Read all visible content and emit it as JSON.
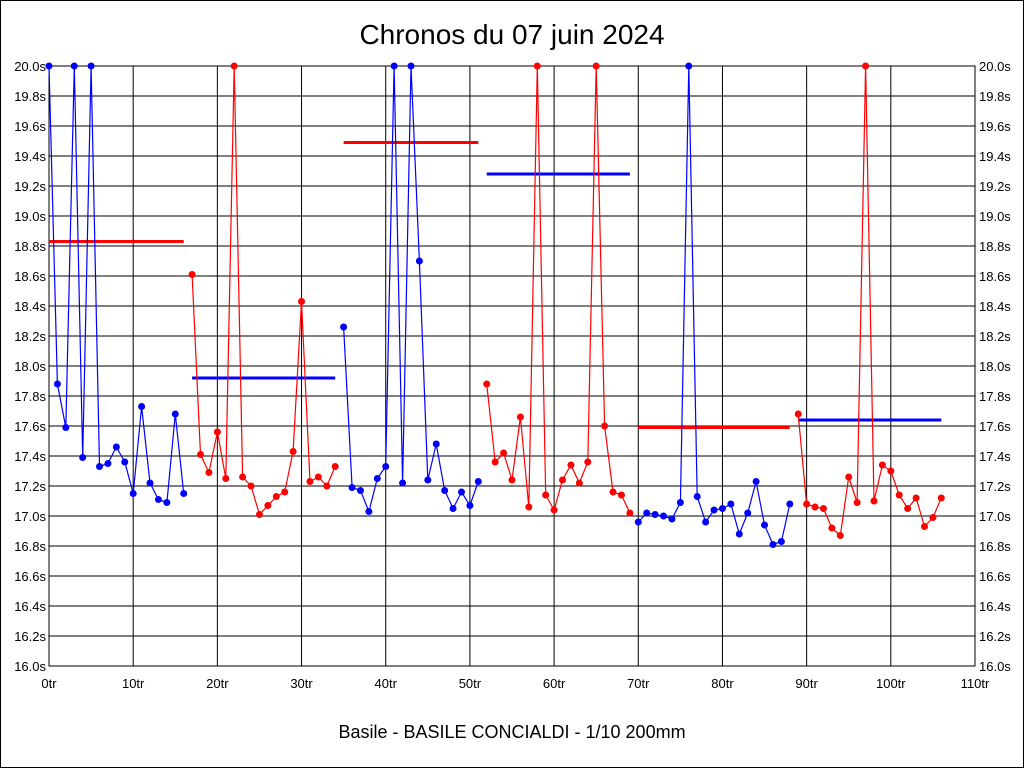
{
  "chart_data": {
    "type": "line",
    "title": "Chronos du 07 juin 2024",
    "xlabel": "Basile - BASILE CONCIALDI - 1/10 200mm",
    "ylabel": "",
    "xlim": [
      0,
      110
    ],
    "ylim": [
      16.0,
      20.0
    ],
    "x_ticks": [
      0,
      10,
      20,
      30,
      40,
      50,
      60,
      70,
      80,
      90,
      100,
      110
    ],
    "x_tick_suffix": "tr",
    "y_ticks": [
      16.0,
      16.2,
      16.4,
      16.6,
      16.8,
      17.0,
      17.2,
      17.4,
      17.6,
      17.8,
      18.0,
      18.2,
      18.4,
      18.6,
      18.8,
      19.0,
      19.2,
      19.4,
      19.6,
      19.8,
      20.0
    ],
    "y_tick_suffix": "s",
    "grid": true,
    "series": [
      {
        "name": "segment-1",
        "color": "#0000ff",
        "avg_color": "#ff0000",
        "start": 0,
        "average": 18.83,
        "values": [
          20.0,
          17.88,
          17.59,
          20.0,
          17.39,
          20.0,
          17.33,
          17.35,
          17.46,
          17.36,
          17.15,
          17.73,
          17.22,
          17.11,
          17.09,
          17.68,
          17.15
        ]
      },
      {
        "name": "segment-2",
        "color": "#ff0000",
        "avg_color": "#0000ff",
        "start": 17,
        "average": 17.92,
        "values": [
          18.61,
          17.41,
          17.29,
          17.56,
          17.25,
          20.0,
          17.26,
          17.2,
          17.01,
          17.07,
          17.13,
          17.16,
          17.43,
          18.43,
          17.23,
          17.26,
          17.2,
          17.33
        ]
      },
      {
        "name": "segment-3",
        "color": "#0000ff",
        "avg_color": "#ff0000",
        "start": 35,
        "average": 19.49,
        "values": [
          18.26,
          17.19,
          17.17,
          17.03,
          17.25,
          17.33,
          20.0,
          17.22,
          20.0,
          18.7,
          17.24,
          17.48,
          17.17,
          17.05,
          17.16,
          17.07,
          17.23
        ]
      },
      {
        "name": "segment-4",
        "color": "#ff0000",
        "avg_color": "#0000ff",
        "start": 52,
        "average": 19.28,
        "values": [
          17.88,
          17.36,
          17.42,
          17.24,
          17.66,
          17.06,
          20.0,
          17.14,
          17.04,
          17.24,
          17.34,
          17.22,
          17.36,
          20.0,
          17.6,
          17.16,
          17.14,
          17.02
        ]
      },
      {
        "name": "segment-5",
        "color": "#0000ff",
        "avg_color": "#ff0000",
        "start": 70,
        "average": 17.59,
        "values": [
          16.96,
          17.02,
          17.01,
          17.0,
          16.98,
          17.09,
          20.0,
          17.13,
          16.96,
          17.04,
          17.05,
          17.08,
          16.88,
          17.02,
          17.23,
          16.94,
          16.81,
          16.83,
          17.08
        ]
      },
      {
        "name": "segment-6",
        "color": "#ff0000",
        "avg_color": "#0000ff",
        "start": 89,
        "average": 17.64,
        "values": [
          17.68,
          17.08,
          17.06,
          17.05,
          16.92,
          16.87,
          17.26,
          17.09,
          20.0,
          17.1,
          17.34,
          17.3,
          17.14,
          17.05,
          17.12,
          16.93,
          16.99,
          17.12
        ]
      }
    ]
  }
}
